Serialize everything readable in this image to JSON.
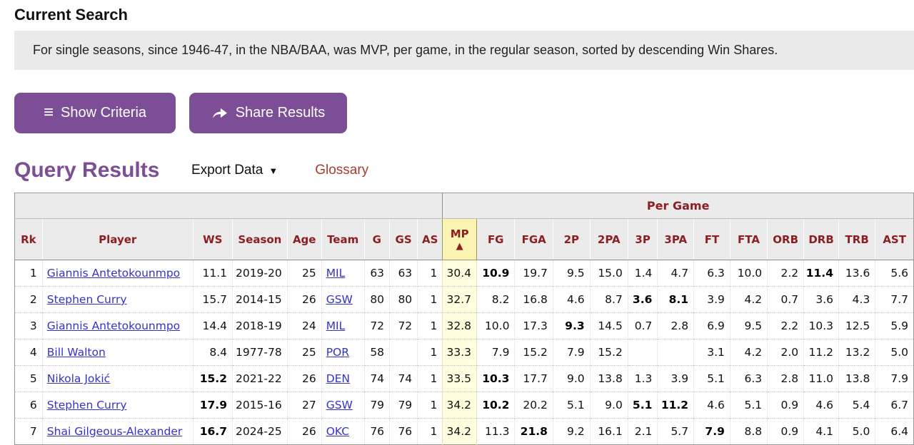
{
  "page": {
    "current_search_title": "Current Search",
    "search_description": "For single seasons, since 1946-47, in the NBA/BAA, was MVP, per game, in the regular season, sorted by descending Win Shares."
  },
  "buttons": {
    "show_criteria": "Show Criteria",
    "share_results": "Share Results"
  },
  "results": {
    "title": "Query Results",
    "export_label": "Export Data",
    "export_caret": "▼",
    "glossary_label": "Glossary"
  },
  "table": {
    "group_header": "Per Game",
    "sort_column": "MP",
    "sort_direction_icon": "▲",
    "columns": [
      "Rk",
      "Player",
      "WS",
      "Season",
      "Age",
      "Team",
      "G",
      "GS",
      "AS",
      "MP",
      "FG",
      "FGA",
      "2P",
      "2PA",
      "3P",
      "3PA",
      "FT",
      "FTA",
      "ORB",
      "DRB",
      "TRB",
      "AST"
    ],
    "link_columns": [
      "Player",
      "Team"
    ],
    "rows": [
      {
        "cells": [
          "1",
          "Giannis Antetokounmpo",
          "11.1",
          "2019-20",
          "25",
          "MIL",
          "63",
          "63",
          "1",
          "30.4",
          "10.9",
          "19.7",
          "9.5",
          "15.0",
          "1.4",
          "4.7",
          "6.3",
          "10.0",
          "2.2",
          "11.4",
          "13.6",
          "5.6"
        ],
        "bold": [
          "FG",
          "DRB"
        ]
      },
      {
        "cells": [
          "2",
          "Stephen Curry",
          "15.7",
          "2014-15",
          "26",
          "GSW",
          "80",
          "80",
          "1",
          "32.7",
          "8.2",
          "16.8",
          "4.6",
          "8.7",
          "3.6",
          "8.1",
          "3.9",
          "4.2",
          "0.7",
          "3.6",
          "4.3",
          "7.7"
        ],
        "bold": [
          "3P",
          "3PA"
        ]
      },
      {
        "cells": [
          "3",
          "Giannis Antetokounmpo",
          "14.4",
          "2018-19",
          "24",
          "MIL",
          "72",
          "72",
          "1",
          "32.8",
          "10.0",
          "17.3",
          "9.3",
          "14.5",
          "0.7",
          "2.8",
          "6.9",
          "9.5",
          "2.2",
          "10.3",
          "12.5",
          "5.9"
        ],
        "bold": [
          "2P"
        ]
      },
      {
        "cells": [
          "4",
          "Bill Walton",
          "8.4",
          "1977-78",
          "25",
          "POR",
          "58",
          "",
          "1",
          "33.3",
          "7.9",
          "15.2",
          "7.9",
          "15.2",
          "",
          "",
          "3.1",
          "4.2",
          "2.0",
          "11.2",
          "13.2",
          "5.0"
        ],
        "bold": []
      },
      {
        "cells": [
          "5",
          "Nikola Jokić",
          "15.2",
          "2021-22",
          "26",
          "DEN",
          "74",
          "74",
          "1",
          "33.5",
          "10.3",
          "17.7",
          "9.0",
          "13.8",
          "1.3",
          "3.9",
          "5.1",
          "6.3",
          "2.8",
          "11.0",
          "13.8",
          "7.9"
        ],
        "bold": [
          "WS",
          "FG"
        ]
      },
      {
        "cells": [
          "6",
          "Stephen Curry",
          "17.9",
          "2015-16",
          "27",
          "GSW",
          "79",
          "79",
          "1",
          "34.2",
          "10.2",
          "20.2",
          "5.1",
          "9.0",
          "5.1",
          "11.2",
          "4.6",
          "5.1",
          "0.9",
          "4.6",
          "5.4",
          "6.7"
        ],
        "bold": [
          "WS",
          "FG",
          "3P",
          "3PA"
        ]
      },
      {
        "cells": [
          "7",
          "Shai Gilgeous-Alexander",
          "16.7",
          "2024-25",
          "26",
          "OKC",
          "76",
          "76",
          "1",
          "34.2",
          "11.3",
          "21.8",
          "9.2",
          "16.1",
          "2.1",
          "5.7",
          "7.9",
          "8.8",
          "0.9",
          "4.1",
          "5.0",
          "6.4"
        ],
        "bold": [
          "WS",
          "FGA",
          "FT"
        ]
      }
    ]
  },
  "colors": {
    "accent_purple": "#7c4e96",
    "header_maroon": "#8d1e24",
    "glossary_red": "#aa3c2d",
    "link_blue": "#3333cc",
    "sorted_header_yellow": "#faf3b2",
    "sorted_column_yellow": "#ffffe0"
  }
}
